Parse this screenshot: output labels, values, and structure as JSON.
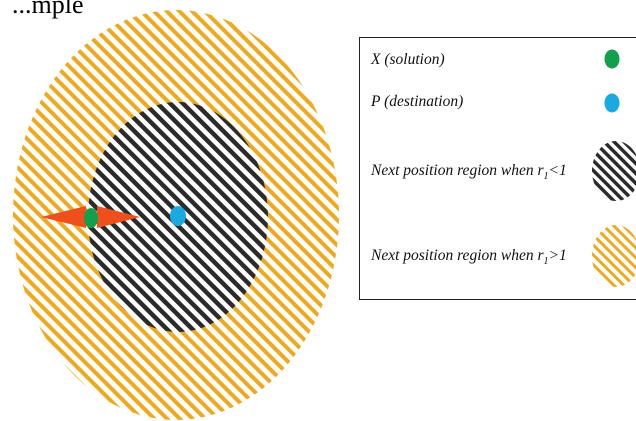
{
  "header": {
    "partial_text": "...mple"
  },
  "legend": {
    "items": [
      {
        "label": "X  (solution)",
        "swatch": "green-dot"
      },
      {
        "label": "P  (destination)",
        "swatch": "blue-dot"
      },
      {
        "label_prefix": "Next position region when  r",
        "sub": "1",
        "label_suffix": "<1",
        "swatch": "black-hatch"
      },
      {
        "label_prefix": "Next position region when  r",
        "sub": "1",
        "label_suffix": ">1",
        "swatch": "orange-hatch"
      }
    ]
  },
  "colors": {
    "solution_green": "#13a04c",
    "destination_blue": "#1aa9e0",
    "inner_region_hatch": "#2b2b2b",
    "outer_region_hatch": "#f0a81c",
    "arrow_orange": "#ee4f1c"
  }
}
